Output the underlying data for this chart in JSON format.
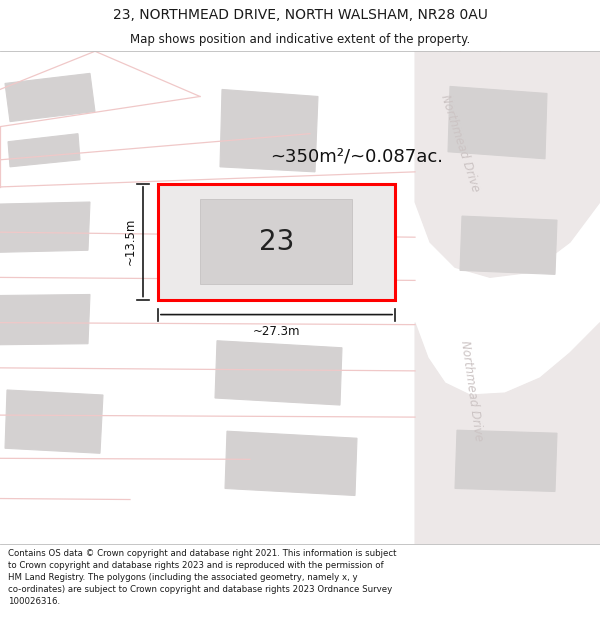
{
  "title_line1": "23, NORTHMEAD DRIVE, NORTH WALSHAM, NR28 0AU",
  "title_line2": "Map shows position and indicative extent of the property.",
  "footer_text": "Contains OS data © Crown copyright and database right 2021. This information is subject to Crown copyright and database rights 2023 and is reproduced with the permission of HM Land Registry. The polygons (including the associated geometry, namely x, y co-ordinates) are subject to Crown copyright and database rights 2023 Ordnance Survey 100026316.",
  "area_label": "~350m²/~0.087ac.",
  "number_label": "23",
  "width_label": "~27.3m",
  "height_label": "~13.5m",
  "map_bg": "#f2f0f0",
  "road_bg": "#ede8e8",
  "plot_fill": "#eceaea",
  "plot_border": "#ff0000",
  "building_fill": "#d4d1d1",
  "road_line_color": "#f0c8c8",
  "street_text_color": "#ccc4c4",
  "dim_line_color": "#1a1a1a",
  "title_color": "#1a1a1a",
  "footer_color": "#1a1a1a",
  "title_fontsize": 10,
  "subtitle_fontsize": 8.5,
  "area_fontsize": 13,
  "number_fontsize": 20,
  "dim_fontsize": 8.5,
  "street_fontsize": 8.5,
  "footer_fontsize": 6.2
}
